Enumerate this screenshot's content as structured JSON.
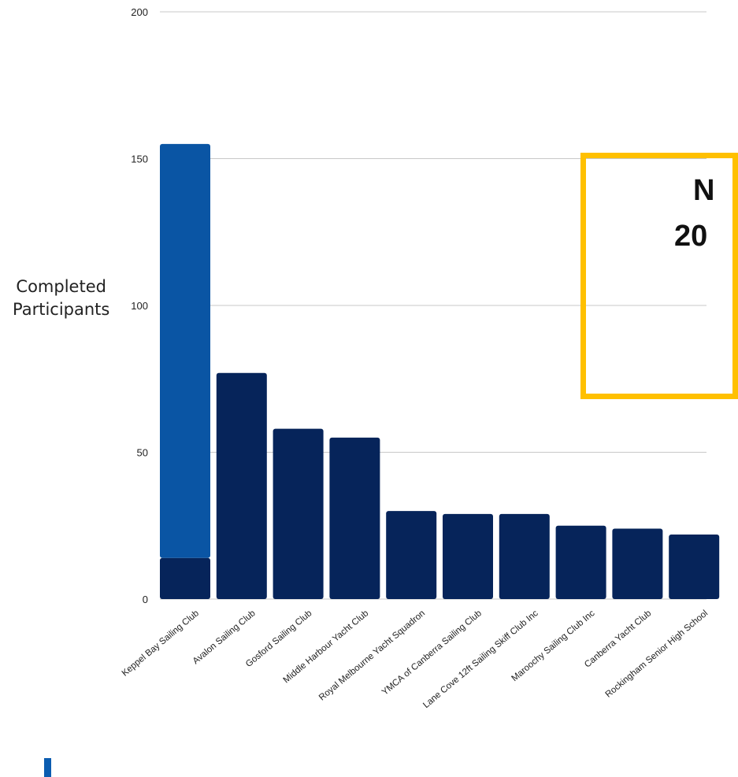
{
  "chart_data": {
    "type": "bar",
    "ylabel": "Completed\nParticipants",
    "ylim": [
      0,
      200
    ],
    "yticks": [
      0,
      50,
      100,
      150,
      200
    ],
    "grid": true,
    "categories": [
      "Keppel Bay Sailing Club",
      "Avalon Sailing Club",
      "Gosford Sailing Club",
      "Middle Harbour Yacht Club",
      "Royal Melbourne Yacht Squadron",
      "YMCA of Canberra Sailing Club",
      "Lane Cove 12ft Sailing Skiff Club Inc",
      "Maroochy Sailing Club Inc",
      "Canberra Yacht Club",
      "Rockingham Senior High School"
    ],
    "series": [
      {
        "values": [
          14,
          77,
          58,
          55,
          30,
          29,
          29,
          25,
          24,
          22
        ],
        "color": "#06245a"
      },
      {
        "values": [
          141,
          0,
          0,
          0,
          0,
          0,
          0,
          0,
          0,
          0
        ],
        "color": "#0a55a4"
      }
    ]
  },
  "callout": {
    "line1": "N",
    "line2": "20",
    "border_color": "#ffc000"
  }
}
